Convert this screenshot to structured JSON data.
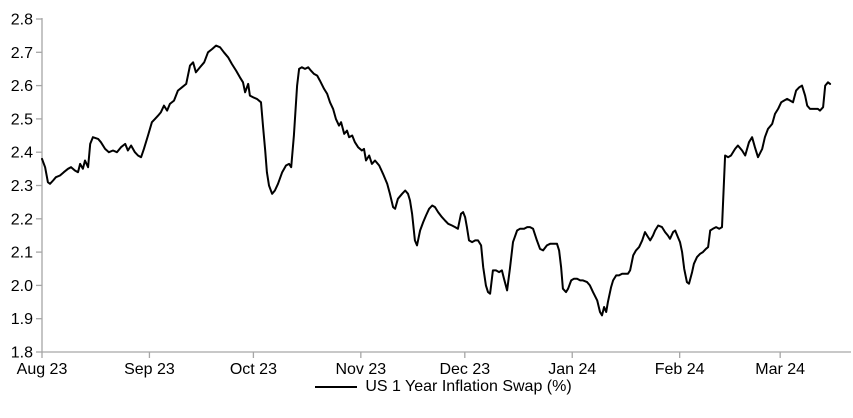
{
  "chart_data": {
    "type": "line",
    "title": "",
    "legend": {
      "label": "US 1 Year Inflation Swap (%)",
      "position": "bottom"
    },
    "grid": false,
    "colors": {
      "series": "#000000",
      "axis": "#a6a6a6",
      "text": "#000000",
      "background": "#ffffff"
    },
    "y_axis": {
      "min": 1.8,
      "max": 2.8,
      "tick_step": 0.1,
      "tick_labels": [
        "2.8",
        "2.7",
        "2.6",
        "2.5",
        "2.4",
        "2.3",
        "2.2",
        "2.1",
        "2.0",
        "1.9",
        "1.8"
      ]
    },
    "x_axis": {
      "unit": "days since 2023-08-01",
      "ticks": [
        {
          "label": "Aug 23",
          "day": 0
        },
        {
          "label": "Sep 23",
          "day": 31
        },
        {
          "label": "Oct 23",
          "day": 61
        },
        {
          "label": "Nov 23",
          "day": 92
        },
        {
          "label": "Dec 23",
          "day": 122
        },
        {
          "label": "Jan 24",
          "day": 153
        },
        {
          "label": "Feb 24",
          "day": 184
        },
        {
          "label": "Mar 24",
          "day": 213
        }
      ]
    },
    "series": [
      {
        "name": "US 1 Year Inflation Swap (%)",
        "color": "#000000",
        "points": [
          [
            0,
            2.38
          ],
          [
            0.9,
            2.355
          ],
          [
            1.7,
            2.31
          ],
          [
            2.3,
            2.305
          ],
          [
            3.2,
            2.315
          ],
          [
            4,
            2.325
          ],
          [
            5.2,
            2.33
          ],
          [
            6.3,
            2.34
          ],
          [
            7.5,
            2.35
          ],
          [
            8.4,
            2.355
          ],
          [
            9.5,
            2.345
          ],
          [
            10.4,
            2.34
          ],
          [
            11,
            2.365
          ],
          [
            11.8,
            2.35
          ],
          [
            12.4,
            2.375
          ],
          [
            13.3,
            2.355
          ],
          [
            13.9,
            2.425
          ],
          [
            14.7,
            2.445
          ],
          [
            16.2,
            2.44
          ],
          [
            17,
            2.43
          ],
          [
            18.2,
            2.41
          ],
          [
            19.3,
            2.4
          ],
          [
            20.5,
            2.405
          ],
          [
            21.6,
            2.4
          ],
          [
            22.8,
            2.415
          ],
          [
            24,
            2.425
          ],
          [
            24.8,
            2.405
          ],
          [
            25.7,
            2.42
          ],
          [
            26.8,
            2.4
          ],
          [
            27.7,
            2.39
          ],
          [
            28.6,
            2.385
          ],
          [
            29.4,
            2.41
          ],
          [
            30.6,
            2.45
          ],
          [
            31.7,
            2.49
          ],
          [
            32.6,
            2.5
          ],
          [
            33.5,
            2.51
          ],
          [
            34.3,
            2.52
          ],
          [
            35.2,
            2.54
          ],
          [
            36.1,
            2.525
          ],
          [
            36.9,
            2.545
          ],
          [
            38.1,
            2.555
          ],
          [
            39.2,
            2.585
          ],
          [
            40.4,
            2.595
          ],
          [
            41.6,
            2.605
          ],
          [
            42.7,
            2.66
          ],
          [
            43.6,
            2.67
          ],
          [
            44.4,
            2.64
          ],
          [
            45.6,
            2.655
          ],
          [
            46.8,
            2.67
          ],
          [
            47.9,
            2.7
          ],
          [
            49.1,
            2.71
          ],
          [
            50.2,
            2.72
          ],
          [
            51.4,
            2.715
          ],
          [
            52.5,
            2.7
          ],
          [
            53.7,
            2.685
          ],
          [
            54.8,
            2.665
          ],
          [
            56,
            2.645
          ],
          [
            57.1,
            2.625
          ],
          [
            58,
            2.61
          ],
          [
            58.6,
            2.58
          ],
          [
            59.5,
            2.605
          ],
          [
            60,
            2.57
          ],
          [
            60.9,
            2.565
          ],
          [
            62,
            2.56
          ],
          [
            63.2,
            2.55
          ],
          [
            63.8,
            2.475
          ],
          [
            64.4,
            2.405
          ],
          [
            64.9,
            2.34
          ],
          [
            65.5,
            2.3
          ],
          [
            66.4,
            2.275
          ],
          [
            67.2,
            2.285
          ],
          [
            68.1,
            2.305
          ],
          [
            69.3,
            2.34
          ],
          [
            70.4,
            2.36
          ],
          [
            71.3,
            2.365
          ],
          [
            71.9,
            2.355
          ],
          [
            72.7,
            2.45
          ],
          [
            73.6,
            2.6
          ],
          [
            74.2,
            2.65
          ],
          [
            75,
            2.655
          ],
          [
            75.9,
            2.65
          ],
          [
            76.8,
            2.655
          ],
          [
            77.6,
            2.645
          ],
          [
            78.5,
            2.635
          ],
          [
            79.4,
            2.63
          ],
          [
            80.2,
            2.615
          ],
          [
            81.4,
            2.59
          ],
          [
            82.3,
            2.575
          ],
          [
            83.1,
            2.55
          ],
          [
            84,
            2.53
          ],
          [
            84.8,
            2.5
          ],
          [
            85.7,
            2.48
          ],
          [
            86.3,
            2.49
          ],
          [
            87.2,
            2.455
          ],
          [
            88,
            2.465
          ],
          [
            88.6,
            2.445
          ],
          [
            89.5,
            2.45
          ],
          [
            90.3,
            2.43
          ],
          [
            91.2,
            2.415
          ],
          [
            92.3,
            2.405
          ],
          [
            92.9,
            2.41
          ],
          [
            93.5,
            2.375
          ],
          [
            94.4,
            2.39
          ],
          [
            95.2,
            2.365
          ],
          [
            96.1,
            2.375
          ],
          [
            97.3,
            2.36
          ],
          [
            98.4,
            2.335
          ],
          [
            99.6,
            2.305
          ],
          [
            100.4,
            2.275
          ],
          [
            101.3,
            2.235
          ],
          [
            101.9,
            2.23
          ],
          [
            102.7,
            2.26
          ],
          [
            103.9,
            2.275
          ],
          [
            104.8,
            2.285
          ],
          [
            105.6,
            2.275
          ],
          [
            106.2,
            2.255
          ],
          [
            106.8,
            2.215
          ],
          [
            107.6,
            2.135
          ],
          [
            108.2,
            2.12
          ],
          [
            109.1,
            2.165
          ],
          [
            110,
            2.19
          ],
          [
            110.8,
            2.21
          ],
          [
            111.7,
            2.23
          ],
          [
            112.6,
            2.24
          ],
          [
            113.4,
            2.235
          ],
          [
            114.3,
            2.22
          ],
          [
            115.4,
            2.205
          ],
          [
            116.3,
            2.195
          ],
          [
            117.2,
            2.185
          ],
          [
            118.3,
            2.18
          ],
          [
            119.2,
            2.175
          ],
          [
            120,
            2.17
          ],
          [
            120.9,
            2.215
          ],
          [
            121.5,
            2.22
          ],
          [
            122.1,
            2.205
          ],
          [
            122.6,
            2.175
          ],
          [
            123.2,
            2.135
          ],
          [
            124.1,
            2.13
          ],
          [
            125,
            2.135
          ],
          [
            125.8,
            2.135
          ],
          [
            126.7,
            2.12
          ],
          [
            127.3,
            2.055
          ],
          [
            128.1,
            2.0
          ],
          [
            128.7,
            1.98
          ],
          [
            129.3,
            1.975
          ],
          [
            130.1,
            2.045
          ],
          [
            131,
            2.045
          ],
          [
            131.9,
            2.04
          ],
          [
            132.7,
            2.045
          ],
          [
            133.3,
            2.02
          ],
          [
            134.2,
            1.985
          ],
          [
            135,
            2.05
          ],
          [
            135.9,
            2.13
          ],
          [
            137.1,
            2.165
          ],
          [
            137.9,
            2.17
          ],
          [
            139.1,
            2.17
          ],
          [
            140,
            2.175
          ],
          [
            140.8,
            2.175
          ],
          [
            141.7,
            2.17
          ],
          [
            142.8,
            2.135
          ],
          [
            143.7,
            2.11
          ],
          [
            144.6,
            2.105
          ],
          [
            145.7,
            2.12
          ],
          [
            146.6,
            2.125
          ],
          [
            147.7,
            2.125
          ],
          [
            148.6,
            2.125
          ],
          [
            149.2,
            2.105
          ],
          [
            149.8,
            2.055
          ],
          [
            150.3,
            1.99
          ],
          [
            151.2,
            1.98
          ],
          [
            151.8,
            1.99
          ],
          [
            152.7,
            2.015
          ],
          [
            153.5,
            2.02
          ],
          [
            154.4,
            2.02
          ],
          [
            155.3,
            2.015
          ],
          [
            156.1,
            2.015
          ],
          [
            157.3,
            2.01
          ],
          [
            158.1,
            2.0
          ],
          [
            159,
            1.98
          ],
          [
            160.2,
            1.955
          ],
          [
            161,
            1.92
          ],
          [
            161.6,
            1.91
          ],
          [
            162.2,
            1.935
          ],
          [
            162.8,
            1.92
          ],
          [
            163.3,
            1.95
          ],
          [
            164.2,
            1.995
          ],
          [
            164.8,
            2.015
          ],
          [
            165.7,
            2.03
          ],
          [
            166.5,
            2.03
          ],
          [
            167.4,
            2.035
          ],
          [
            168.3,
            2.035
          ],
          [
            169.1,
            2.035
          ],
          [
            169.7,
            2.045
          ],
          [
            170.6,
            2.09
          ],
          [
            171.4,
            2.105
          ],
          [
            172.3,
            2.115
          ],
          [
            173.2,
            2.135
          ],
          [
            174,
            2.16
          ],
          [
            174.9,
            2.145
          ],
          [
            175.5,
            2.135
          ],
          [
            176.3,
            2.15
          ],
          [
            176.9,
            2.165
          ],
          [
            177.8,
            2.18
          ],
          [
            178.9,
            2.175
          ],
          [
            179.8,
            2.16
          ],
          [
            180.6,
            2.15
          ],
          [
            181.2,
            2.14
          ],
          [
            182.1,
            2.16
          ],
          [
            182.7,
            2.165
          ],
          [
            183.5,
            2.145
          ],
          [
            184.1,
            2.13
          ],
          [
            184.7,
            2.1
          ],
          [
            185.3,
            2.05
          ],
          [
            186.1,
            2.01
          ],
          [
            186.7,
            2.005
          ],
          [
            187.6,
            2.04
          ],
          [
            188.1,
            2.065
          ],
          [
            189,
            2.085
          ],
          [
            189.9,
            2.095
          ],
          [
            190.7,
            2.1
          ],
          [
            191.6,
            2.11
          ],
          [
            192.2,
            2.115
          ],
          [
            192.8,
            2.165
          ],
          [
            193.6,
            2.17
          ],
          [
            194.5,
            2.175
          ],
          [
            195.4,
            2.17
          ],
          [
            196.2,
            2.175
          ],
          [
            197.1,
            2.39
          ],
          [
            198,
            2.385
          ],
          [
            198.8,
            2.39
          ],
          [
            200,
            2.41
          ],
          [
            200.8,
            2.42
          ],
          [
            202,
            2.405
          ],
          [
            202.9,
            2.39
          ],
          [
            204,
            2.43
          ],
          [
            204.9,
            2.445
          ],
          [
            205.7,
            2.415
          ],
          [
            206.6,
            2.385
          ],
          [
            207.8,
            2.41
          ],
          [
            208.6,
            2.445
          ],
          [
            209.5,
            2.47
          ],
          [
            210.7,
            2.485
          ],
          [
            211.5,
            2.515
          ],
          [
            212.4,
            2.53
          ],
          [
            213.3,
            2.55
          ],
          [
            214.1,
            2.555
          ],
          [
            215,
            2.56
          ],
          [
            215.9,
            2.555
          ],
          [
            216.7,
            2.55
          ],
          [
            217.6,
            2.585
          ],
          [
            218.5,
            2.595
          ],
          [
            219.3,
            2.6
          ],
          [
            220.2,
            2.57
          ],
          [
            220.8,
            2.54
          ],
          [
            221.6,
            2.53
          ],
          [
            222.8,
            2.53
          ],
          [
            223.9,
            2.53
          ],
          [
            224.5,
            2.525
          ],
          [
            225.4,
            2.535
          ],
          [
            226,
            2.6
          ],
          [
            226.8,
            2.61
          ],
          [
            227.4,
            2.605
          ]
        ]
      }
    ]
  }
}
